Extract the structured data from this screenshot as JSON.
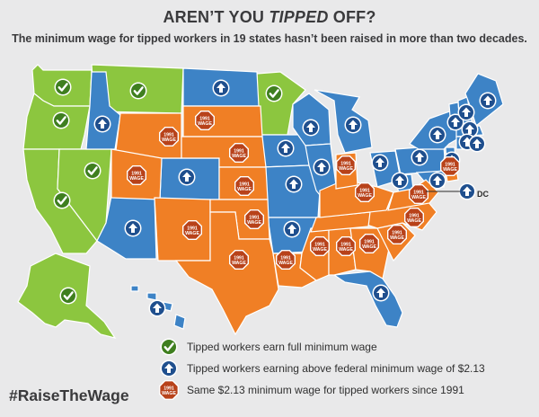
{
  "header": {
    "title_pre": "AREN’T YOU ",
    "title_em": "TIPPED",
    "title_post": " OFF?",
    "subtitle": "The minimum wage for tipped workers in 19 states hasn’t been raised in more than two decades."
  },
  "colors": {
    "full": "#8cc63f",
    "above": "#3d83c6",
    "same": "#f07f25",
    "sea": "#e9e9ea"
  },
  "marker_text": {
    "year": "1991",
    "word": "WAGE"
  },
  "legend": [
    {
      "type": "full",
      "icon": "check-icon",
      "label": "Tipped workers earn full minimum wage"
    },
    {
      "type": "above",
      "icon": "up-arrow-icon",
      "label": "Tipped workers earning above federal minimum wage of $2.13"
    },
    {
      "type": "same",
      "icon": "octagon-1991-icon",
      "label": "Same $2.13 minimum wage for tipped workers since 1991"
    }
  ],
  "dc_label": "DC",
  "hashtag": "#RaiseTheWage"
}
